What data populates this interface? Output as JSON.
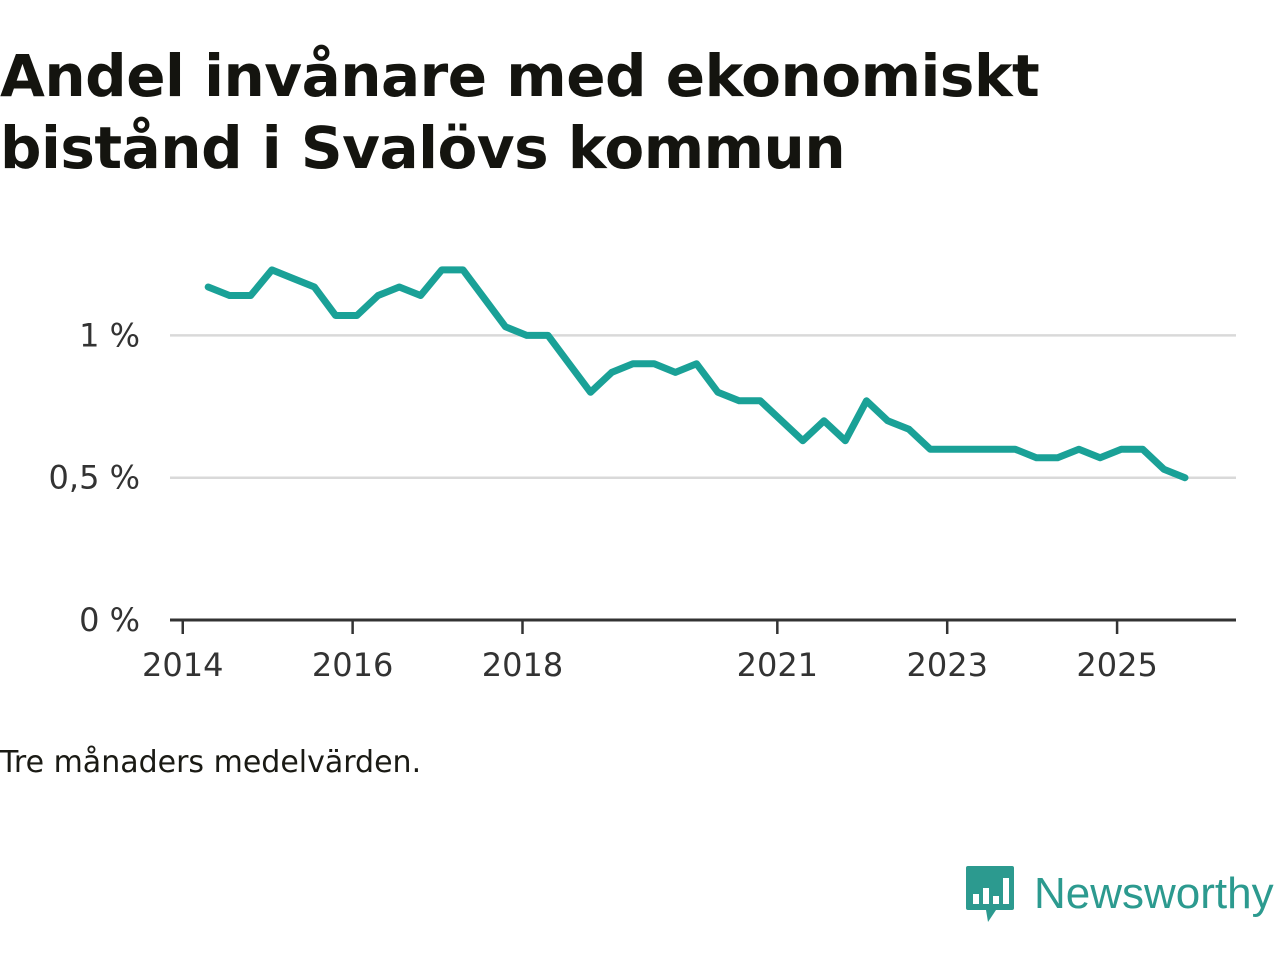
{
  "title": "Andel invånare med ekonomiskt bistånd i Svalövs kommun",
  "caption": "Tre månaders medelvärden.",
  "brand": {
    "name": "Newsworthy",
    "color": "#2c9a8f"
  },
  "chart_data": {
    "type": "line",
    "title": "Andel invånare med ekonomiskt bistånd i Svalövs kommun",
    "xlabel": "",
    "ylabel": "",
    "line_color": "#1aa197",
    "grid": true,
    "xlim": [
      2013.85,
      2026.4
    ],
    "ylim": [
      0,
      1.3
    ],
    "yticks": [
      {
        "value": 0,
        "label": "0 %"
      },
      {
        "value": 0.5,
        "label": "0,5 %"
      },
      {
        "value": 1,
        "label": "1 %"
      }
    ],
    "xticks": [
      {
        "value": 2014,
        "label": "2014"
      },
      {
        "value": 2016,
        "label": "2016"
      },
      {
        "value": 2018,
        "label": "2018"
      },
      {
        "value": 2021,
        "label": "2021"
      },
      {
        "value": 2023,
        "label": "2023"
      },
      {
        "value": 2025,
        "label": "2025"
      }
    ],
    "series": [
      {
        "name": "Andel invånare med ekonomiskt bistånd",
        "x": [
          2014.3,
          2014.55,
          2014.8,
          2015.05,
          2015.3,
          2015.55,
          2015.8,
          2016.05,
          2016.3,
          2016.55,
          2016.8,
          2017.05,
          2017.3,
          2017.55,
          2017.8,
          2018.05,
          2018.3,
          2018.55,
          2018.8,
          2019.05,
          2019.3,
          2019.55,
          2019.8,
          2020.05,
          2020.3,
          2020.55,
          2020.8,
          2021.05,
          2021.3,
          2021.55,
          2021.8,
          2022.05,
          2022.3,
          2022.55,
          2022.8,
          2023.05,
          2023.3,
          2023.55,
          2023.8,
          2024.05,
          2024.3,
          2024.55,
          2024.8,
          2025.05,
          2025.3,
          2025.55,
          2025.8
        ],
        "values": [
          1.17,
          1.14,
          1.14,
          1.23,
          1.2,
          1.17,
          1.07,
          1.07,
          1.14,
          1.17,
          1.14,
          1.23,
          1.23,
          1.13,
          1.03,
          1.0,
          1.0,
          0.9,
          0.8,
          0.87,
          0.9,
          0.9,
          0.87,
          0.9,
          0.8,
          0.77,
          0.77,
          0.7,
          0.63,
          0.7,
          0.63,
          0.77,
          0.7,
          0.67,
          0.6,
          0.6,
          0.6,
          0.6,
          0.6,
          0.57,
          0.57,
          0.6,
          0.57,
          0.6,
          0.6,
          0.53,
          0.5
        ]
      }
    ]
  }
}
